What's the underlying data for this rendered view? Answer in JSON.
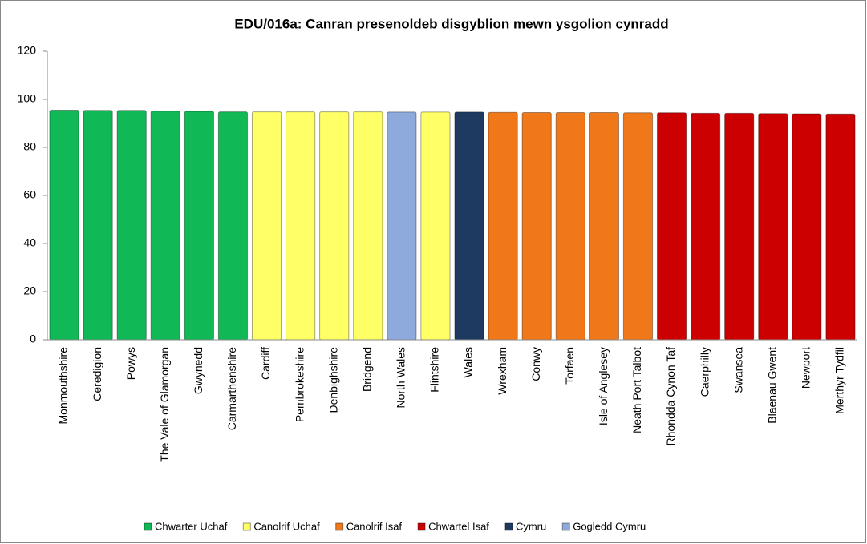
{
  "chart_data": {
    "type": "bar",
    "title": "EDU/016a: Canran presenoldeb disgyblion mewn ysgolion cynradd",
    "categories": [
      "Monmouthshire",
      "Ceredigion",
      "Powys",
      "The Vale of Glamorgan",
      "Gwynedd",
      "Carmarthenshire",
      "Cardiff",
      "Pembrokeshire",
      "Denbighshire",
      "Bridgend",
      "North Wales",
      "Flintshire",
      "Wales",
      "Wrexham",
      "Conwy",
      "Torfaen",
      "Isle of Anglesey",
      "Neath Port Talbot",
      "Rhondda Cynon Taf",
      "Caerphilly",
      "Swansea",
      "Blaenau Gwent",
      "Newport",
      "Merthyr Tydfil"
    ],
    "values": [
      95.5,
      95.4,
      95.4,
      95.1,
      95.0,
      94.8,
      94.8,
      94.8,
      94.8,
      94.8,
      94.7,
      94.7,
      94.7,
      94.6,
      94.5,
      94.5,
      94.5,
      94.4,
      94.4,
      94.2,
      94.2,
      94.1,
      94.0,
      93.9
    ],
    "colors": [
      "#10b856",
      "#10b856",
      "#10b856",
      "#10b856",
      "#10b856",
      "#10b856",
      "#ffff66",
      "#ffff66",
      "#ffff66",
      "#ffff66",
      "#8ea9db",
      "#ffff66",
      "#1f3a60",
      "#f07818",
      "#f07818",
      "#f07818",
      "#f07818",
      "#f07818",
      "#cc0000",
      "#cc0000",
      "#cc0000",
      "#cc0000",
      "#cc0000",
      "#cc0000"
    ],
    "legend": [
      {
        "name": "Chwarter Uchaf",
        "color": "#10b856"
      },
      {
        "name": "Canolrif Uchaf",
        "color": "#ffff66"
      },
      {
        "name": "Canolrif Isaf",
        "color": "#f07818"
      },
      {
        "name": "Chwartel Isaf",
        "color": "#cc0000"
      },
      {
        "name": "Cymru",
        "color": "#1f3a60"
      },
      {
        "name": "Gogledd Cymru",
        "color": "#8ea9db"
      }
    ],
    "ylim": [
      0,
      120
    ],
    "yticks": [
      0,
      20,
      40,
      60,
      80,
      100,
      120
    ],
    "grid": false
  }
}
